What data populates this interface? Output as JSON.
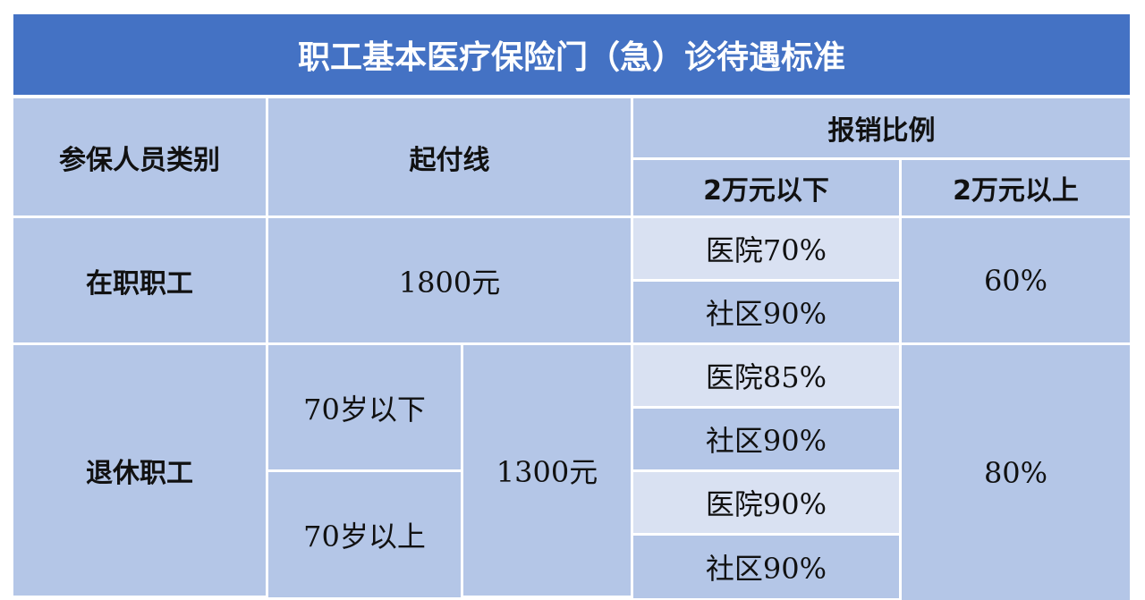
{
  "title": "职工基本医疗保险门（急）诊待遇标准",
  "header": {
    "category": "参保人员类别",
    "deductible": "起付线",
    "reimbursement": "报销比例",
    "below_20k": "2万元以下",
    "above_20k": "2万元以上"
  },
  "rows": {
    "employed": {
      "category": "在职职工",
      "deductible": "1800元",
      "hospital": "医院70%",
      "community": "社区90%",
      "above": "60%"
    },
    "retired": {
      "category": "退休职工",
      "deductible": "1300元",
      "above": "80%",
      "under70": {
        "label": "70岁以下",
        "hospital": "医院85%",
        "community": "社区90%"
      },
      "over70": {
        "label": "70岁以上",
        "hospital": "医院90%",
        "community": "社区90%"
      }
    }
  },
  "colors": {
    "title_bg": "#4472c4",
    "cell_bg": "#b4c6e7",
    "cell_light_bg": "#d9e1f2"
  }
}
